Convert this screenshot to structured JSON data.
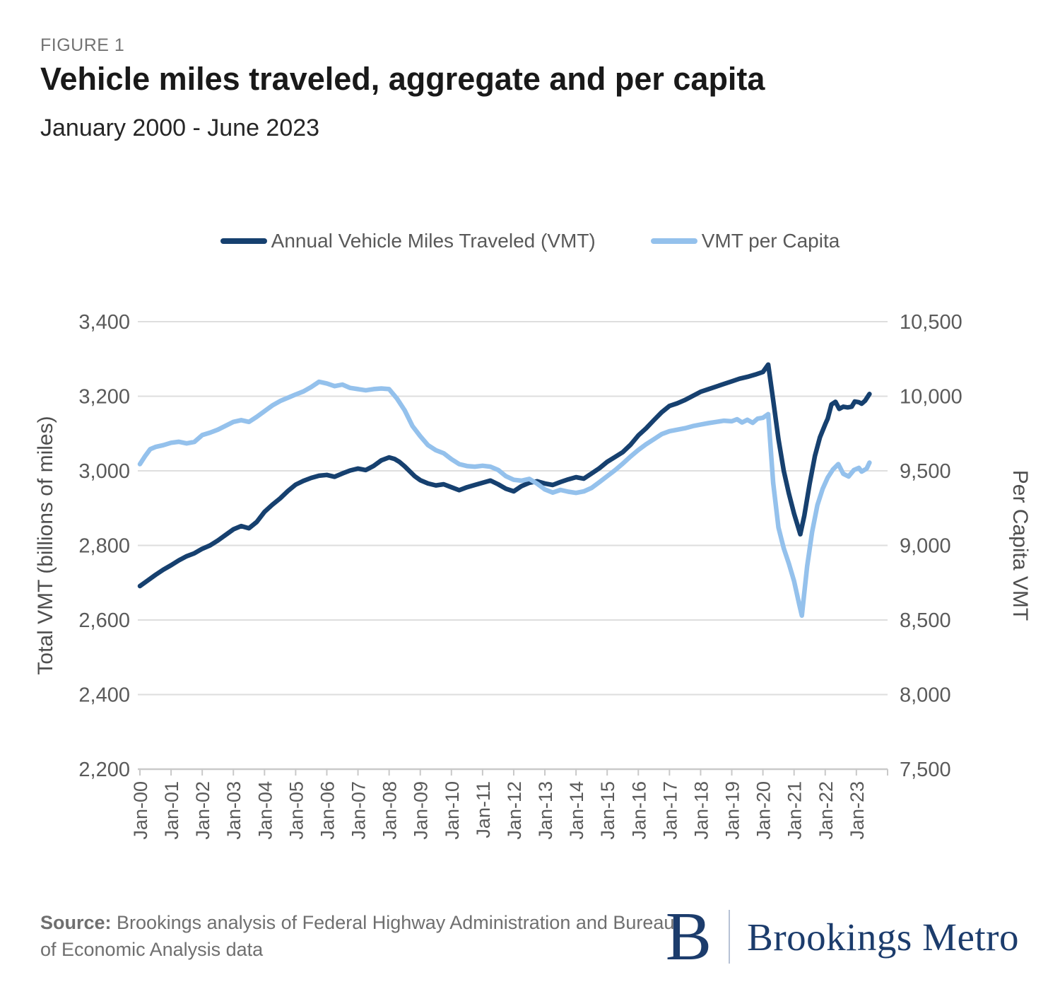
{
  "figure_label": "FIGURE 1",
  "title": "Vehicle miles traveled, aggregate and per capita",
  "subtitle": "January 2000 - June 2023",
  "source": {
    "label": "Source:",
    "text": " Brookings analysis of Federal Highway Administration and Bureau of Economic Analysis data"
  },
  "logo": {
    "initial": "B",
    "name": "Brookings Metro"
  },
  "chart_data": {
    "type": "line",
    "title": "Vehicle miles traveled, aggregate and per capita",
    "subtitle": "January 2000 - June 2023",
    "grid": true,
    "legend_position": "top-center",
    "x_ticks": [
      "Jan-00",
      "Jan-01",
      "Jan-02",
      "Jan-03",
      "Jan-04",
      "Jan-05",
      "Jan-06",
      "Jan-07",
      "Jan-08",
      "Jan-09",
      "Jan-10",
      "Jan-11",
      "Jan-12",
      "Jan-13",
      "Jan-14",
      "Jan-15",
      "Jan-16",
      "Jan-17",
      "Jan-18",
      "Jan-19",
      "Jan-20",
      "Jan-21",
      "Jan-22",
      "Jan-23"
    ],
    "x_range_years": [
      2000.0,
      2023.42
    ],
    "y_left": {
      "label": "Total VMT (billions of miles)",
      "min": 2200,
      "max": 3400,
      "step": 200,
      "ticks": [
        "2,200",
        "2,400",
        "2,600",
        "2,800",
        "3,000",
        "3,200",
        "3,400"
      ]
    },
    "y_right": {
      "label": "Per Capita VMT",
      "min": 7500,
      "max": 10500,
      "step": 500,
      "ticks": [
        "7,500",
        "8,000",
        "8,500",
        "9,000",
        "9,500",
        "10,000",
        "10,500"
      ]
    },
    "series": [
      {
        "name": "Annual Vehicle Miles Traveled (VMT)",
        "axis": "left",
        "color": "#16406f",
        "points": [
          [
            2000.0,
            2691
          ],
          [
            2000.25,
            2706
          ],
          [
            2000.5,
            2721
          ],
          [
            2000.75,
            2735
          ],
          [
            2001.0,
            2747
          ],
          [
            2001.25,
            2760
          ],
          [
            2001.5,
            2771
          ],
          [
            2001.75,
            2779
          ],
          [
            2002.0,
            2791
          ],
          [
            2002.25,
            2800
          ],
          [
            2002.5,
            2813
          ],
          [
            2002.75,
            2828
          ],
          [
            2003.0,
            2843
          ],
          [
            2003.25,
            2852
          ],
          [
            2003.5,
            2846
          ],
          [
            2003.75,
            2863
          ],
          [
            2004.0,
            2890
          ],
          [
            2004.25,
            2909
          ],
          [
            2004.5,
            2926
          ],
          [
            2004.75,
            2946
          ],
          [
            2005.0,
            2963
          ],
          [
            2005.25,
            2973
          ],
          [
            2005.5,
            2981
          ],
          [
            2005.75,
            2987
          ],
          [
            2006.0,
            2989
          ],
          [
            2006.25,
            2984
          ],
          [
            2006.5,
            2993
          ],
          [
            2006.75,
            3001
          ],
          [
            2007.0,
            3006
          ],
          [
            2007.25,
            3002
          ],
          [
            2007.5,
            3013
          ],
          [
            2007.75,
            3028
          ],
          [
            2008.0,
            3036
          ],
          [
            2008.17,
            3032
          ],
          [
            2008.33,
            3024
          ],
          [
            2008.5,
            3012
          ],
          [
            2008.67,
            2998
          ],
          [
            2008.83,
            2985
          ],
          [
            2009.0,
            2975
          ],
          [
            2009.25,
            2966
          ],
          [
            2009.5,
            2961
          ],
          [
            2009.75,
            2964
          ],
          [
            2010.0,
            2956
          ],
          [
            2010.25,
            2948
          ],
          [
            2010.5,
            2956
          ],
          [
            2010.75,
            2962
          ],
          [
            2011.0,
            2968
          ],
          [
            2011.25,
            2974
          ],
          [
            2011.5,
            2964
          ],
          [
            2011.75,
            2952
          ],
          [
            2012.0,
            2945
          ],
          [
            2012.25,
            2959
          ],
          [
            2012.5,
            2968
          ],
          [
            2012.75,
            2972
          ],
          [
            2013.0,
            2966
          ],
          [
            2013.25,
            2962
          ],
          [
            2013.5,
            2970
          ],
          [
            2013.75,
            2977
          ],
          [
            2014.0,
            2983
          ],
          [
            2014.25,
            2979
          ],
          [
            2014.5,
            2993
          ],
          [
            2014.75,
            3007
          ],
          [
            2015.0,
            3024
          ],
          [
            2015.25,
            3037
          ],
          [
            2015.5,
            3050
          ],
          [
            2015.75,
            3070
          ],
          [
            2016.0,
            3095
          ],
          [
            2016.25,
            3114
          ],
          [
            2016.5,
            3136
          ],
          [
            2016.75,
            3157
          ],
          [
            2017.0,
            3174
          ],
          [
            2017.25,
            3181
          ],
          [
            2017.5,
            3190
          ],
          [
            2017.75,
            3201
          ],
          [
            2018.0,
            3212
          ],
          [
            2018.25,
            3219
          ],
          [
            2018.5,
            3226
          ],
          [
            2018.75,
            3233
          ],
          [
            2019.0,
            3240
          ],
          [
            2019.25,
            3247
          ],
          [
            2019.5,
            3252
          ],
          [
            2019.75,
            3258
          ],
          [
            2020.0,
            3265
          ],
          [
            2020.17,
            3285
          ],
          [
            2020.33,
            3190
          ],
          [
            2020.5,
            3085
          ],
          [
            2020.67,
            3000
          ],
          [
            2020.83,
            2940
          ],
          [
            2021.0,
            2885
          ],
          [
            2021.2,
            2830
          ],
          [
            2021.33,
            2880
          ],
          [
            2021.5,
            2965
          ],
          [
            2021.67,
            3040
          ],
          [
            2021.83,
            3090
          ],
          [
            2022.0,
            3125
          ],
          [
            2022.08,
            3140
          ],
          [
            2022.2,
            3178
          ],
          [
            2022.33,
            3185
          ],
          [
            2022.45,
            3166
          ],
          [
            2022.58,
            3172
          ],
          [
            2022.72,
            3170
          ],
          [
            2022.85,
            3172
          ],
          [
            2022.95,
            3186
          ],
          [
            2023.08,
            3184
          ],
          [
            2023.17,
            3180
          ],
          [
            2023.28,
            3188
          ],
          [
            2023.42,
            3206
          ]
        ]
      },
      {
        "name": "VMT per Capita",
        "axis": "right",
        "color": "#94c1ec",
        "points": [
          [
            2000.0,
            9545
          ],
          [
            2000.17,
            9600
          ],
          [
            2000.33,
            9645
          ],
          [
            2000.5,
            9660
          ],
          [
            2000.75,
            9672
          ],
          [
            2001.0,
            9688
          ],
          [
            2001.25,
            9695
          ],
          [
            2001.5,
            9684
          ],
          [
            2001.75,
            9694
          ],
          [
            2002.0,
            9740
          ],
          [
            2002.25,
            9756
          ],
          [
            2002.5,
            9776
          ],
          [
            2002.75,
            9802
          ],
          [
            2003.0,
            9828
          ],
          [
            2003.25,
            9840
          ],
          [
            2003.5,
            9828
          ],
          [
            2003.75,
            9862
          ],
          [
            2004.0,
            9900
          ],
          [
            2004.25,
            9938
          ],
          [
            2004.5,
            9968
          ],
          [
            2004.75,
            9990
          ],
          [
            2005.0,
            10012
          ],
          [
            2005.25,
            10032
          ],
          [
            2005.5,
            10062
          ],
          [
            2005.75,
            10097
          ],
          [
            2006.0,
            10086
          ],
          [
            2006.25,
            10068
          ],
          [
            2006.5,
            10078
          ],
          [
            2006.75,
            10056
          ],
          [
            2007.0,
            10048
          ],
          [
            2007.25,
            10040
          ],
          [
            2007.5,
            10048
          ],
          [
            2007.75,
            10052
          ],
          [
            2008.0,
            10048
          ],
          [
            2008.25,
            9985
          ],
          [
            2008.5,
            9905
          ],
          [
            2008.75,
            9800
          ],
          [
            2009.0,
            9732
          ],
          [
            2009.25,
            9672
          ],
          [
            2009.5,
            9638
          ],
          [
            2009.75,
            9618
          ],
          [
            2010.0,
            9578
          ],
          [
            2010.25,
            9545
          ],
          [
            2010.5,
            9532
          ],
          [
            2010.75,
            9528
          ],
          [
            2011.0,
            9534
          ],
          [
            2011.25,
            9528
          ],
          [
            2011.5,
            9506
          ],
          [
            2011.75,
            9464
          ],
          [
            2012.0,
            9440
          ],
          [
            2012.25,
            9434
          ],
          [
            2012.5,
            9446
          ],
          [
            2012.75,
            9414
          ],
          [
            2013.0,
            9376
          ],
          [
            2013.25,
            9354
          ],
          [
            2013.5,
            9372
          ],
          [
            2013.75,
            9360
          ],
          [
            2014.0,
            9352
          ],
          [
            2014.25,
            9362
          ],
          [
            2014.5,
            9386
          ],
          [
            2014.75,
            9424
          ],
          [
            2015.0,
            9464
          ],
          [
            2015.25,
            9504
          ],
          [
            2015.5,
            9548
          ],
          [
            2015.75,
            9596
          ],
          [
            2016.0,
            9640
          ],
          [
            2016.25,
            9678
          ],
          [
            2016.5,
            9712
          ],
          [
            2016.75,
            9746
          ],
          [
            2017.0,
            9766
          ],
          [
            2017.25,
            9776
          ],
          [
            2017.5,
            9786
          ],
          [
            2017.75,
            9800
          ],
          [
            2018.0,
            9810
          ],
          [
            2018.25,
            9820
          ],
          [
            2018.5,
            9828
          ],
          [
            2018.75,
            9836
          ],
          [
            2019.0,
            9832
          ],
          [
            2019.17,
            9846
          ],
          [
            2019.33,
            9824
          ],
          [
            2019.5,
            9842
          ],
          [
            2019.67,
            9822
          ],
          [
            2019.83,
            9850
          ],
          [
            2020.0,
            9856
          ],
          [
            2020.17,
            9880
          ],
          [
            2020.33,
            9420
          ],
          [
            2020.5,
            9120
          ],
          [
            2020.67,
            8980
          ],
          [
            2020.83,
            8880
          ],
          [
            2021.0,
            8760
          ],
          [
            2021.17,
            8600
          ],
          [
            2021.25,
            8530
          ],
          [
            2021.42,
            8860
          ],
          [
            2021.58,
            9090
          ],
          [
            2021.75,
            9270
          ],
          [
            2021.92,
            9380
          ],
          [
            2022.08,
            9455
          ],
          [
            2022.25,
            9510
          ],
          [
            2022.42,
            9545
          ],
          [
            2022.58,
            9480
          ],
          [
            2022.75,
            9462
          ],
          [
            2022.92,
            9505
          ],
          [
            2023.08,
            9520
          ],
          [
            2023.17,
            9495
          ],
          [
            2023.33,
            9515
          ],
          [
            2023.42,
            9555
          ]
        ]
      }
    ]
  }
}
